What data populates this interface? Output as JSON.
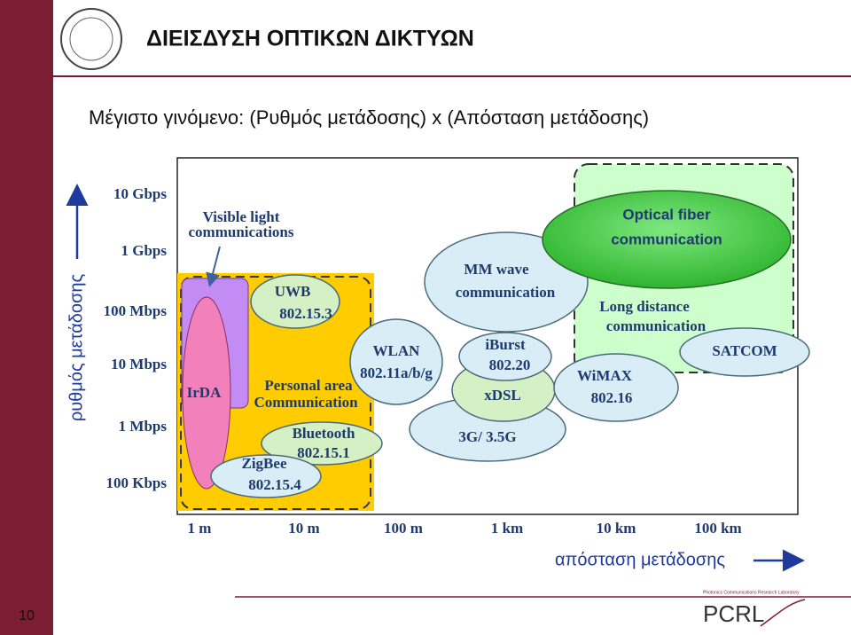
{
  "header": {
    "title": "ΔΙΕΙΣΔΥΣΗ ΟΠΤΙΚΩΝ ΔΙΚΤΥΩΝ"
  },
  "subtitle": "Μέγιστο γινόμενο: (Ρυθμός  μετάδοσης) x  (Απόσταση μετάδοσης)",
  "diagram": {
    "rate_labels": [
      "10 Gbps",
      "1 Gbps",
      "100 Mbps",
      "10 Mbps",
      "1 Mbps",
      "100 Kbps"
    ],
    "distance_labels": [
      "1 m",
      "10 m",
      "100 m",
      "1 km",
      "10 km",
      "100 km"
    ],
    "rate_axis_title": "ρυθμός μετάδοσης",
    "distance_axis_title": "απόσταση μετάδοσης",
    "regions": {
      "visible_light": [
        "Visible light",
        "communications"
      ],
      "irda": [
        "IrDA"
      ],
      "personal_area": [
        "Personal area",
        "Communication"
      ],
      "uwb": [
        "UWB",
        "802.15.3"
      ],
      "wlan": [
        "WLAN",
        "802.11a/b/g"
      ],
      "bluetooth": [
        "Bluetooth",
        "802.15.1"
      ],
      "zigbee": [
        "ZigBee",
        "802.15.4"
      ],
      "mm_wave": [
        "MM wave",
        "communication"
      ],
      "optical_fiber": [
        "Optical fiber",
        "communication"
      ],
      "long_distance": [
        "Long distance",
        "communication"
      ],
      "satcom": [
        "SATCOM"
      ],
      "iburst": [
        "iBurst",
        "802.20"
      ],
      "xdsl": [
        "xDSL"
      ],
      "wimax": [
        "WiMAX",
        "802.16"
      ],
      "cellular": [
        "3G/ 3.5G"
      ]
    }
  },
  "page_number": "10",
  "logo": {
    "caption": "Photonics Communications Research Laboratory",
    "text": "PCRL"
  }
}
